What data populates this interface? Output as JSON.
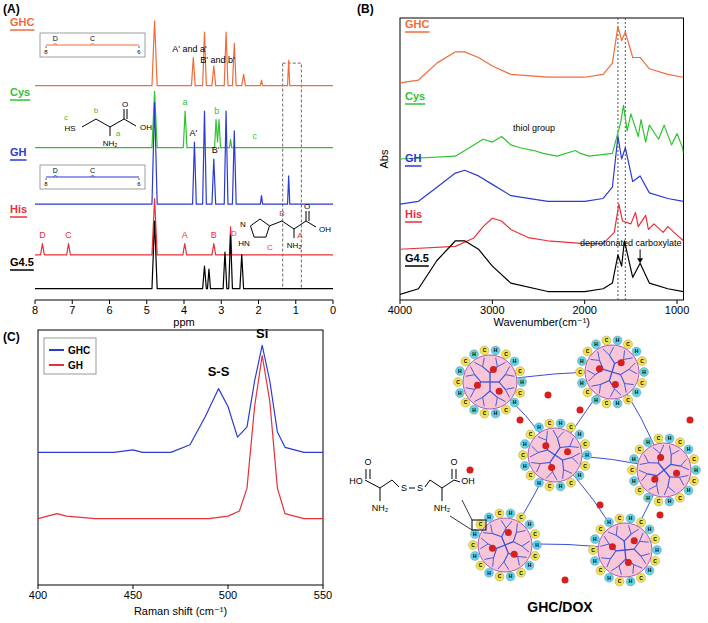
{
  "chart_data": [
    {
      "panel": "(A)",
      "type": "line",
      "x_label": "ppm",
      "xlim": [
        8,
        0
      ],
      "xticks": [
        8,
        7,
        6,
        5,
        4,
        3,
        2,
        1,
        0
      ],
      "ylim": [
        0,
        100
      ],
      "tick_labels": "x",
      "series": [
        {
          "name": "GHC",
          "color": "#f26b3a",
          "x": [
            8,
            4.86,
            4.79,
            4.72,
            3.8,
            3.75,
            3.7,
            3.5,
            3.45,
            3.4,
            3.25,
            3.2,
            3.15,
            2.92,
            2.87,
            2.82,
            2.7,
            2.65,
            2.6,
            2.45,
            2.4,
            2.35,
            1.95,
            1.92,
            1.89,
            1.22,
            1.19,
            1.16,
            0
          ],
          "values": [
            76,
            76,
            99,
            76,
            76,
            86,
            76,
            76,
            95,
            76,
            76,
            83,
            76,
            76,
            95,
            76,
            76,
            91,
            76,
            76,
            80,
            76,
            76,
            78,
            76,
            76,
            85,
            76,
            76
          ]
        },
        {
          "name": "Cys",
          "color": "#2fc42f",
          "x": [
            8,
            4.86,
            4.79,
            4.72,
            4.02,
            3.97,
            3.92,
            3.18,
            3.14,
            3.1,
            3.06,
            3.02,
            2.78,
            2.75,
            2.72,
            0
          ],
          "values": [
            54,
            54,
            74,
            54,
            54,
            67,
            54,
            54,
            64,
            56,
            64,
            54,
            54,
            57,
            54,
            54
          ]
        },
        {
          "name": "GH",
          "color": "#2b3bd1",
          "x": [
            8,
            4.86,
            4.79,
            4.72,
            3.77,
            3.72,
            3.67,
            3.5,
            3.45,
            3.4,
            3.25,
            3.2,
            3.15,
            2.92,
            2.87,
            2.82,
            2.7,
            2.65,
            2.6,
            1.95,
            1.92,
            1.89,
            1.22,
            1.19,
            1.16,
            0
          ],
          "values": [
            34,
            34,
            70,
            34,
            34,
            56,
            34,
            34,
            67,
            34,
            34,
            50,
            34,
            34,
            67,
            34,
            34,
            60,
            34,
            34,
            37,
            34,
            34,
            44,
            34,
            34
          ]
        },
        {
          "name": "His",
          "color": "#e8303a",
          "x": [
            8,
            7.85,
            7.8,
            7.75,
            7.15,
            7.1,
            7.05,
            4.86,
            4.79,
            4.72,
            4.03,
            3.98,
            3.93,
            3.25,
            3.2,
            3.15,
            2.78,
            2.75,
            2.72,
            0
          ],
          "values": [
            16,
            16,
            20,
            16,
            16,
            20,
            16,
            16,
            36,
            16,
            16,
            20,
            16,
            16,
            20,
            16,
            16,
            26,
            16,
            16
          ]
        },
        {
          "name": "G4.5",
          "color": "#000000",
          "x": [
            8,
            4.86,
            4.79,
            4.72,
            3.5,
            3.45,
            3.4,
            3.37,
            3.33,
            3.29,
            2.95,
            2.9,
            2.85,
            2.8,
            2.75,
            2.7,
            2.5,
            2.45,
            2.4,
            0
          ],
          "values": [
            4,
            4,
            28,
            4,
            4,
            12,
            4,
            4,
            11,
            4,
            4,
            17,
            4,
            4,
            23,
            4,
            4,
            16,
            4,
            4
          ]
        }
      ],
      "highlight_box": {
        "x": [
          1.35,
          0.85
        ],
        "y": [
          4,
          84
        ]
      },
      "peak_labels": [
        {
          "x": 3.85,
          "y": 88,
          "text": "A' and a'",
          "color": "#000000"
        },
        {
          "x": 3.1,
          "y": 84,
          "text": "B' and b'",
          "color": "#000000"
        },
        {
          "x": 3.75,
          "y": 58,
          "text": "A'",
          "color": "#000000"
        },
        {
          "x": 3.15,
          "y": 52,
          "text": "B'",
          "color": "#000000"
        },
        {
          "x": 3.97,
          "y": 69,
          "text": "a",
          "color": "#2fc42f"
        },
        {
          "x": 3.12,
          "y": 66,
          "text": "b",
          "color": "#2fc42f"
        },
        {
          "x": 2.1,
          "y": 57,
          "text": "c",
          "color": "#2fc42f"
        },
        {
          "x": 7.8,
          "y": 22,
          "text": "D",
          "color": "#e8303a"
        },
        {
          "x": 7.1,
          "y": 22,
          "text": "C",
          "color": "#e8303a"
        },
        {
          "x": 3.98,
          "y": 22,
          "text": "A",
          "color": "#e8303a"
        },
        {
          "x": 3.2,
          "y": 22,
          "text": "B",
          "color": "#e8303a"
        }
      ],
      "insets": [
        {
          "series": "GHC",
          "xlim": [
            8,
            6
          ],
          "xticks": [
            8,
            6
          ],
          "peaks": [
            {
              "x": 7.8,
              "label": "D"
            },
            {
              "x": 7.0,
              "label": "C"
            }
          ]
        },
        {
          "series": "GH",
          "xlim": [
            8,
            6
          ],
          "xticks": [
            8,
            6
          ],
          "peaks": [
            {
              "x": 7.8,
              "label": "D"
            },
            {
              "x": 7.0,
              "label": "C"
            }
          ]
        }
      ],
      "structures": [
        {
          "color": "#2fc42f",
          "labels": [
            "HS",
            "NH₂",
            "OH",
            "O",
            "c",
            "b",
            "a"
          ]
        },
        {
          "color": "#e8303a",
          "labels": [
            "HN",
            "N",
            "NH₂",
            "OH",
            "O",
            "D",
            "C",
            "A",
            "B"
          ]
        }
      ]
    },
    {
      "panel": "(B)",
      "type": "line",
      "x_label": "Wavenumber(cm⁻¹)",
      "y_label": "Abs",
      "xlim": [
        4000,
        930
      ],
      "xticks": [
        4000,
        3000,
        2000,
        1000
      ],
      "ylim": [
        0,
        100
      ],
      "tick_labels": "x",
      "series": [
        {
          "name": "GHC",
          "color": "#f26b3a",
          "x": [
            4000,
            3800,
            3600,
            3400,
            3300,
            3150,
            3000,
            2800,
            2400,
            2000,
            1800,
            1700,
            1640,
            1600,
            1560,
            1480,
            1400,
            1300,
            1100,
            930
          ],
          "values": [
            77,
            78,
            84,
            88,
            88,
            86,
            83,
            80,
            79,
            79,
            80,
            84,
            97,
            92,
            95,
            86,
            86,
            82,
            80,
            79
          ]
        },
        {
          "name": "Cys",
          "color": "#2fc42f",
          "x": [
            4000,
            3400,
            3200,
            3100,
            3000,
            2900,
            2800,
            2700,
            2550,
            2450,
            2300,
            2100,
            2050,
            1950,
            1700,
            1610,
            1580,
            1540,
            1500,
            1420,
            1390,
            1340,
            1300,
            1200,
            1140,
            1060,
            1000,
            940,
            930
          ],
          "values": [
            50,
            51,
            55,
            57,
            56,
            58,
            55,
            54,
            53,
            52,
            51,
            53,
            52,
            51,
            52,
            63,
            69,
            60,
            66,
            58,
            64,
            56,
            62,
            57,
            62,
            55,
            59,
            54,
            52
          ]
        },
        {
          "name": "GH",
          "color": "#2b3bd1",
          "x": [
            4000,
            3800,
            3600,
            3400,
            3300,
            3150,
            3000,
            2800,
            2400,
            2000,
            1800,
            1700,
            1640,
            1600,
            1560,
            1480,
            1400,
            1300,
            1100,
            930
          ],
          "values": [
            34,
            35,
            40,
            45,
            46,
            44,
            41,
            37,
            35,
            35,
            36,
            40,
            58,
            50,
            54,
            42,
            44,
            38,
            36,
            35
          ]
        },
        {
          "name": "His",
          "color": "#e8303a",
          "x": [
            4000,
            3400,
            3200,
            3100,
            3000,
            2900,
            2800,
            2600,
            2400,
            2000,
            1800,
            1680,
            1630,
            1590,
            1500,
            1450,
            1420,
            1340,
            1310,
            1250,
            1150,
            1100,
            1000,
            930
          ],
          "values": [
            18,
            19,
            22,
            26,
            29,
            28,
            25,
            22,
            21,
            20,
            20,
            24,
            34,
            28,
            27,
            31,
            26,
            30,
            25,
            27,
            24,
            26,
            23,
            21
          ]
        },
        {
          "name": "G4.5",
          "color": "#000000",
          "x": [
            4000,
            3800,
            3600,
            3400,
            3300,
            3150,
            3000,
            2800,
            2400,
            2000,
            1800,
            1700,
            1640,
            1600,
            1570,
            1480,
            1400,
            1300,
            1100,
            930
          ],
          "values": [
            2,
            4,
            14,
            21,
            21,
            18,
            12,
            6,
            3,
            3,
            4,
            6,
            16,
            12,
            21,
            8,
            13,
            6,
            4,
            3
          ]
        }
      ],
      "reference_lines": [
        1640,
        1560
      ],
      "annotations": [
        {
          "x": 2550,
          "y": 60,
          "text": "thiol group"
        },
        {
          "x": 1450,
          "y": 19,
          "text": "deprotonated carboxylate",
          "target": [
            1400,
            13
          ]
        }
      ]
    },
    {
      "panel": "(C)",
      "type": "line",
      "x_label": "Raman shift (cm⁻¹)",
      "xlim": [
        400,
        550
      ],
      "xticks": [
        400,
        450,
        500,
        550
      ],
      "ylim": [
        0,
        100
      ],
      "tick_labels": "x",
      "legend": "upper left",
      "series": [
        {
          "name": "GHC",
          "color": "#2b3bd1",
          "x": [
            400,
            420,
            440,
            450,
            455,
            470,
            480,
            488,
            495,
            500,
            505,
            510,
            514,
            518,
            522,
            526,
            530,
            540,
            550
          ],
          "values": [
            52,
            52,
            52,
            53,
            52,
            52,
            55,
            66,
            77,
            70,
            58,
            62,
            80,
            94,
            80,
            60,
            54,
            52,
            52
          ]
        },
        {
          "name": "GH",
          "color": "#e8303a",
          "x": [
            400,
            405,
            410,
            415,
            430,
            460,
            490,
            500,
            506,
            510,
            514,
            518,
            522,
            526,
            530,
            540,
            550
          ],
          "values": [
            26,
            27,
            28,
            27,
            26,
            26,
            26,
            27,
            29,
            38,
            70,
            90,
            72,
            38,
            28,
            26,
            26
          ]
        }
      ],
      "annotations": [
        {
          "x": 495,
          "y": 82,
          "text": "S-S"
        },
        {
          "x": 518,
          "y": 97,
          "text": "Si"
        }
      ]
    }
  ],
  "schematic": {
    "title": "GHC/DOX",
    "molecule_labels": [
      "HO",
      "O",
      "NH₂",
      "S",
      "S",
      "NH₂",
      "OH",
      "O"
    ],
    "particle_labels": [
      "H",
      "C"
    ]
  }
}
